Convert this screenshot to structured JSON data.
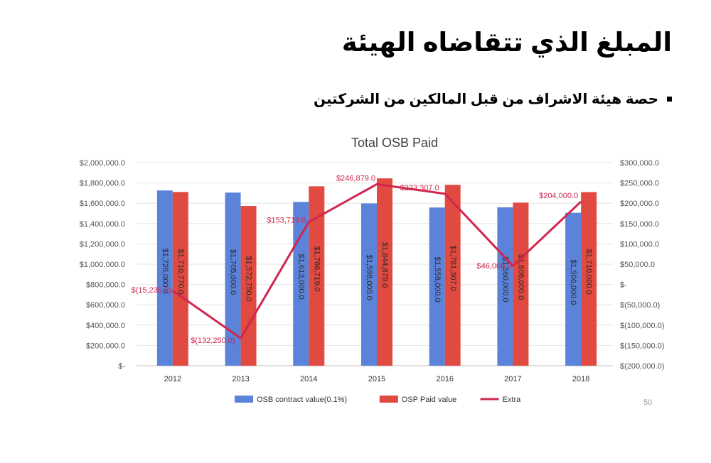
{
  "slide": {
    "title": "المبلغ الذي تتقاضاه الهيئة",
    "bullet": "حصة هيئة الاشراف من قبل المالكين من الشركتين",
    "page_number": "50"
  },
  "chart_data": {
    "type": "bar",
    "title": "Total OSB Paid",
    "categories": [
      "2012",
      "2013",
      "2014",
      "2015",
      "2016",
      "2017",
      "2018"
    ],
    "series": [
      {
        "name": "OSB contract value(0.1%)",
        "type": "bar",
        "axis": "left",
        "color": "#5b83d9",
        "values": [
          1726000,
          1705000,
          1613000,
          1598000,
          1558000,
          1560000,
          1506000
        ],
        "labels": [
          "$1,726,000.0",
          "$1,705,000.0",
          "$1,613,000.0",
          "$1,598,000.0",
          "$1,558,000.0",
          "$1,560,000.0",
          "$1,506,000.0"
        ]
      },
      {
        "name": "OSP Paid value",
        "type": "bar",
        "axis": "left",
        "color": "#e04a41",
        "values": [
          1710770,
          1572750,
          1766719,
          1844879,
          1781307,
          1606000,
          1710000
        ],
        "labels": [
          "$1,710,770.0",
          "$1,572,750.0",
          "$1,766,719.0",
          "$1,844,879.0",
          "$1,781,307.0",
          "$1,606,000.0",
          "$1,710,000.0"
        ]
      },
      {
        "name": "Extra",
        "type": "line",
        "axis": "right",
        "color": "#d0264f",
        "values": [
          -15230,
          -132250,
          153719,
          246879,
          223307,
          46000,
          204000
        ],
        "labels": [
          "$(15,230.0)",
          "$(132,250.0)",
          "$153,719.0",
          "$246,879.0",
          "$223,307.0",
          "$46,000.0",
          "$204,000.0"
        ]
      }
    ],
    "y_left": {
      "min": 0,
      "max": 2000000,
      "ticks": [
        2000000,
        1800000,
        1600000,
        1400000,
        1200000,
        1000000,
        800000,
        600000,
        400000,
        200000,
        0
      ],
      "tick_labels": [
        "$2,000,000.0",
        "$1,800,000.0",
        "$1,600,000.0",
        "$1,400,000.0",
        "$1,200,000.0",
        "$1,000,000.0",
        "$800,000.0",
        "$600,000.0",
        "$400,000.0",
        "$200,000.0",
        "$-"
      ]
    },
    "y_right": {
      "min": -200000,
      "max": 300000,
      "ticks": [
        300000,
        250000,
        200000,
        150000,
        100000,
        50000,
        0,
        -50000,
        -100000,
        -150000,
        -200000
      ],
      "tick_labels": [
        "$300,000.0",
        "$250,000.0",
        "$200,000.0",
        "$150,000.0",
        "$100,000.0",
        "$50,000.0",
        "$-",
        "$(50,000.0)",
        "$(100,000.0)",
        "$(150,000.0)",
        "$(200,000.0)"
      ]
    },
    "grid": true,
    "legend": "bottom"
  }
}
